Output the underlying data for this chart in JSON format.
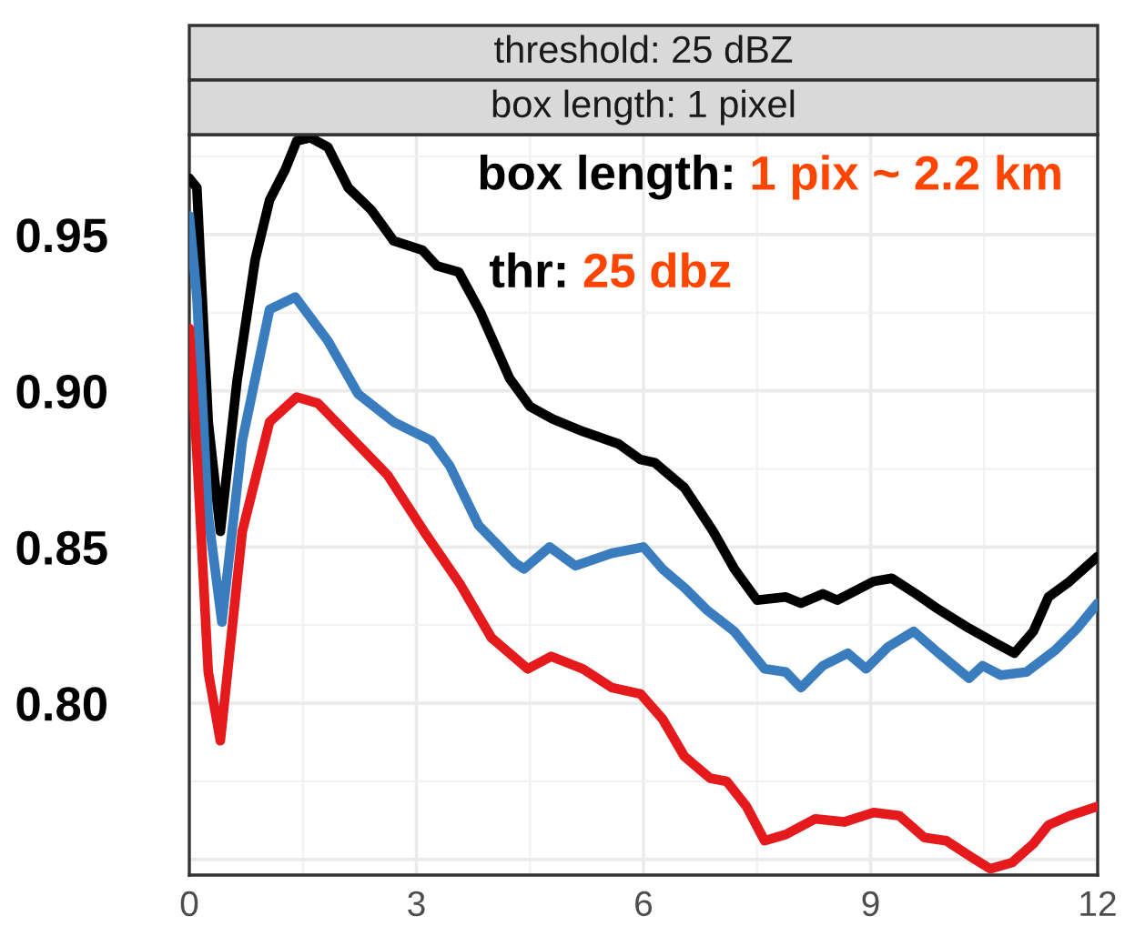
{
  "chart_data": {
    "type": "line",
    "title": "threshold: 25 dBZ",
    "subtitle": "box length: 1 pixel",
    "annotations": [
      "box length: ",
      "1 pix ~ 2.2 km",
      "thr: ",
      "25 dbz"
    ],
    "xlim": [
      0,
      12
    ],
    "xticks": [
      0,
      3,
      6,
      9,
      12
    ],
    "ylim": [
      0.745,
      0.982
    ],
    "yticks": [
      {
        "value": 0.75,
        "label": null
      },
      {
        "value": 0.8,
        "label": "0.80"
      },
      0.85,
      {
        "value": 0.9,
        "label": "0.90"
      },
      0.95
    ],
    "grid": true,
    "line_style": "solid",
    "marker": "none",
    "series": [
      {
        "color": "#000000",
        "x": [
          0,
          0.1,
          0.25,
          0.41,
          0.63,
          0.87,
          1.06,
          1.27,
          1.42,
          1.6,
          1.83,
          2.1,
          2.4,
          2.7,
          3.08,
          3.27,
          3.56,
          3.85,
          4.23,
          4.5,
          4.8,
          5.2,
          5.67,
          5.96,
          6.15,
          6.54,
          6.92,
          7.2,
          7.5,
          7.88,
          8.08,
          8.37,
          8.56,
          9.04,
          9.28,
          9.6,
          9.9,
          10.3,
          10.67,
          10.9,
          11.15,
          11.35,
          11.63,
          12
        ],
        "values": [
          0.968,
          0.965,
          0.89,
          0.855,
          0.903,
          0.942,
          0.961,
          0.971,
          0.98,
          0.981,
          0.978,
          0.965,
          0.958,
          0.948,
          0.945,
          0.94,
          0.938,
          0.925,
          0.904,
          0.895,
          0.891,
          0.887,
          0.883,
          0.878,
          0.877,
          0.869,
          0.855,
          0.843,
          0.833,
          0.834,
          0.832,
          0.835,
          0.833,
          0.839,
          0.84,
          0.835,
          0.83,
          0.824,
          0.819,
          0.816,
          0.823,
          0.834,
          0.839,
          0.847
        ]
      },
      {
        "color": "#3a7dbf",
        "x": [
          0,
          0.1,
          0.25,
          0.43,
          0.7,
          1.06,
          1.4,
          1.83,
          2.23,
          2.7,
          3.2,
          3.44,
          3.82,
          4.3,
          4.42,
          4.76,
          5.1,
          5.58,
          6.0,
          6.25,
          6.54,
          6.83,
          7.2,
          7.6,
          7.88,
          8.08,
          8.37,
          8.7,
          8.94,
          9.23,
          9.57,
          9.9,
          10.3,
          10.48,
          10.72,
          11.06,
          11.44,
          11.73,
          12
        ],
        "values": [
          0.956,
          0.93,
          0.86,
          0.826,
          0.884,
          0.926,
          0.93,
          0.916,
          0.899,
          0.89,
          0.884,
          0.876,
          0.857,
          0.845,
          0.843,
          0.85,
          0.844,
          0.848,
          0.85,
          0.843,
          0.837,
          0.83,
          0.823,
          0.811,
          0.81,
          0.805,
          0.812,
          0.816,
          0.811,
          0.818,
          0.823,
          0.816,
          0.808,
          0.812,
          0.809,
          0.81,
          0.817,
          0.824,
          0.832
        ]
      },
      {
        "color": "#e41a1c",
        "x": [
          0,
          0.1,
          0.25,
          0.41,
          0.7,
          1.06,
          1.42,
          1.7,
          2.14,
          2.62,
          3.1,
          3.58,
          3.99,
          4.47,
          4.78,
          5.2,
          5.58,
          5.96,
          6.25,
          6.54,
          6.88,
          7.1,
          7.36,
          7.6,
          7.88,
          8.27,
          8.65,
          9.04,
          9.38,
          9.71,
          10.0,
          10.38,
          10.58,
          10.87,
          11.15,
          11.35,
          11.63,
          12
        ],
        "values": [
          0.92,
          0.88,
          0.81,
          0.788,
          0.855,
          0.89,
          0.898,
          0.896,
          0.885,
          0.873,
          0.855,
          0.838,
          0.821,
          0.811,
          0.815,
          0.811,
          0.805,
          0.803,
          0.795,
          0.783,
          0.776,
          0.775,
          0.767,
          0.756,
          0.758,
          0.763,
          0.762,
          0.765,
          0.764,
          0.757,
          0.756,
          0.75,
          0.747,
          0.749,
          0.755,
          0.761,
          0.764,
          0.767
        ]
      }
    ]
  }
}
